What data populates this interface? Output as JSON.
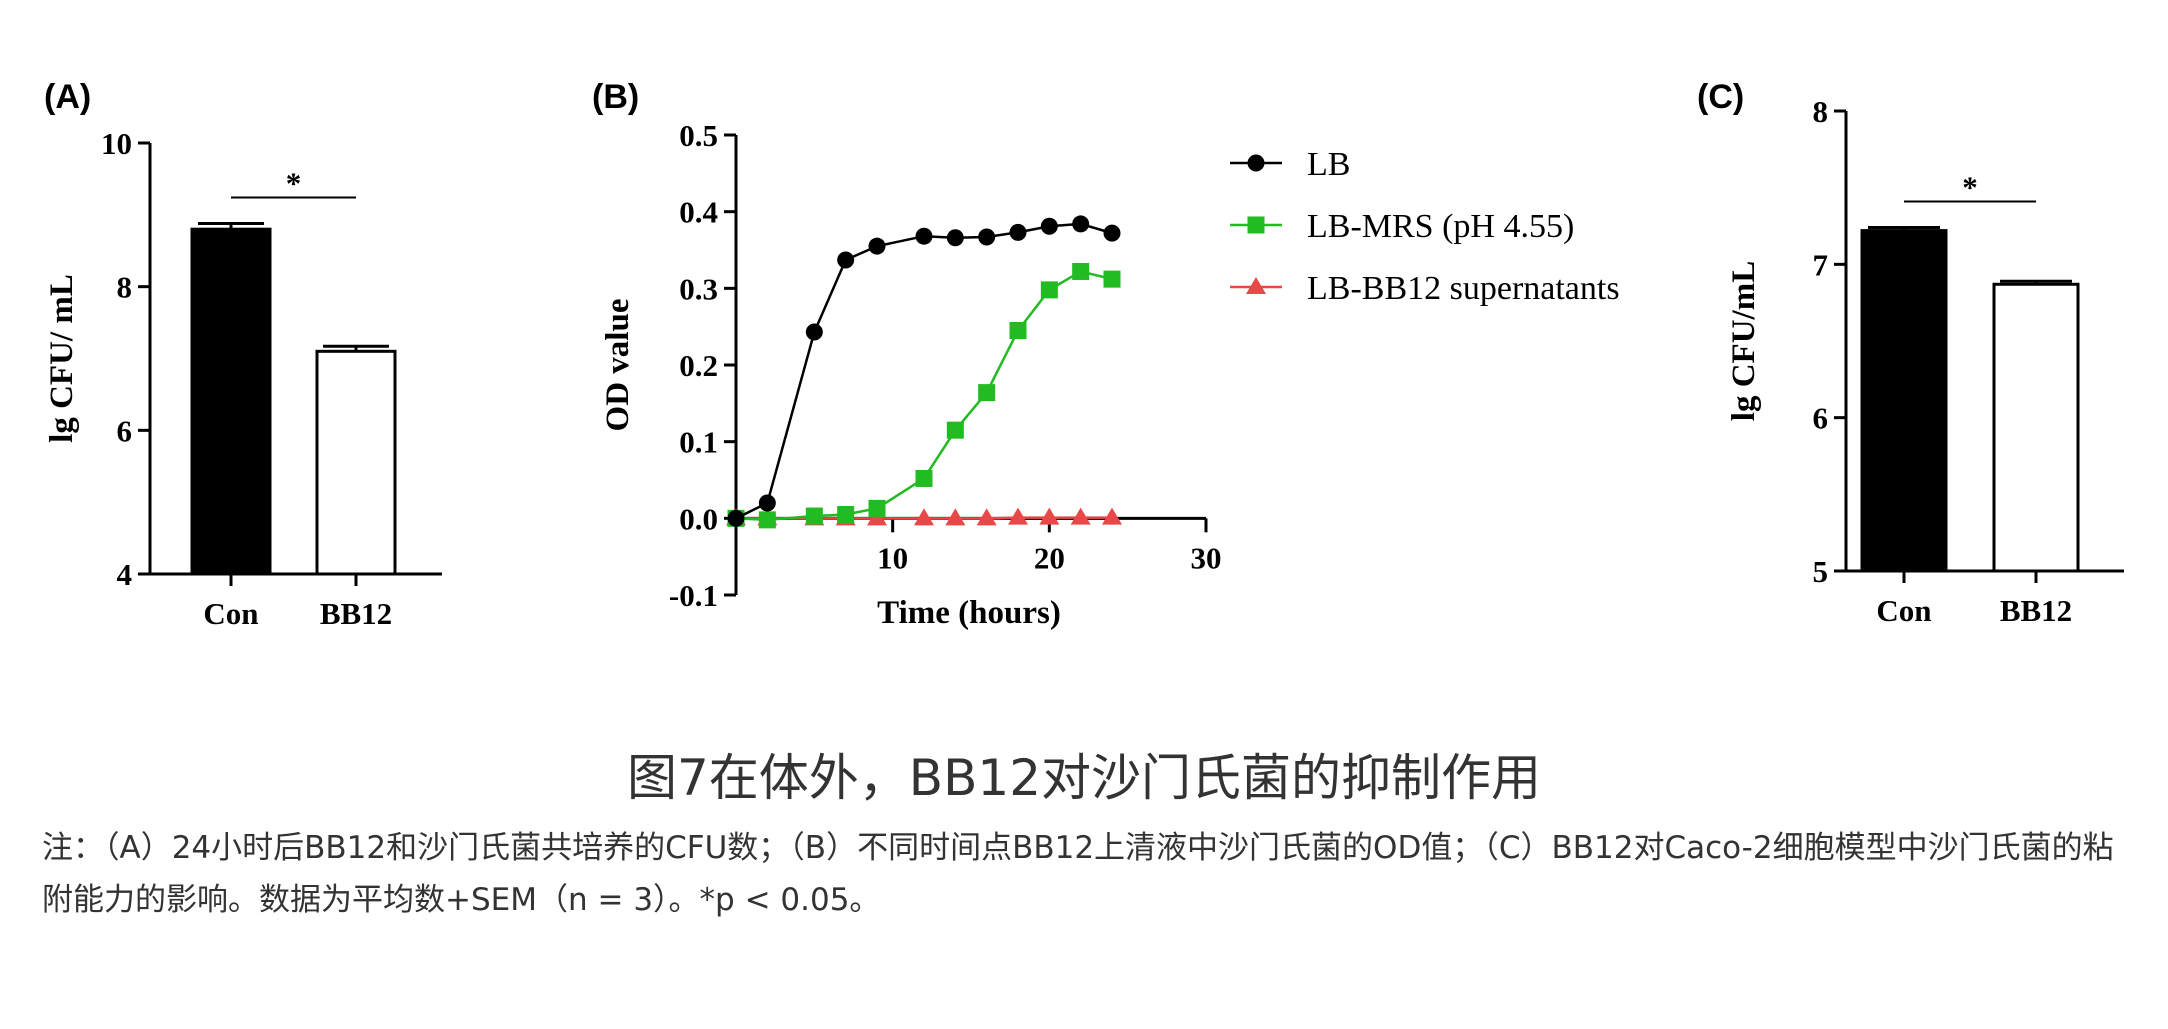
{
  "caption": "图7在体外，BB12对沙门氏菌的抑制作用",
  "note_line1": "注：（A）24小时后BB12和沙门氏菌共培养的CFU数；（B）不同时间点BB12上清液中沙门氏菌的OD值；（C）BB12对Caco-2细胞模型中沙门氏菌的粘",
  "note_line2": "附能力的影响。数据为平均数+SEM（n = 3）。*p < 0.05。",
  "chart_data": [
    {
      "panel": "(A)",
      "type": "bar",
      "categories": [
        "Con",
        "BB12"
      ],
      "values": [
        8.8,
        7.1
      ],
      "errors": [
        0.08,
        0.07
      ],
      "bar_colors": [
        "#000000",
        "#ffffff"
      ],
      "ylabel": "lg CFU/ mL",
      "ylim": [
        4,
        10
      ],
      "yticks": [
        4,
        6,
        8,
        10
      ],
      "significance": "*"
    },
    {
      "panel": "(B)",
      "type": "line",
      "xlabel": "Time (hours)",
      "ylabel": "OD value",
      "xlim": [
        0,
        30
      ],
      "ylim": [
        -0.1,
        0.5
      ],
      "xticks": [
        10,
        20,
        30
      ],
      "yticks": [
        -0.1,
        0.0,
        0.1,
        0.2,
        0.3,
        0.4,
        0.5
      ],
      "legend_position": "right",
      "series": [
        {
          "name": "LB",
          "color": "#000000",
          "marker": "circle",
          "x": [
            0,
            2,
            5,
            7,
            9,
            12,
            14,
            16,
            18,
            20,
            22,
            24
          ],
          "y": [
            0.0,
            0.02,
            0.243,
            0.337,
            0.355,
            0.368,
            0.366,
            0.367,
            0.373,
            0.381,
            0.384,
            0.372
          ]
        },
        {
          "name": "LB-MRS (pH 4.55)",
          "color": "#22bb22",
          "marker": "square",
          "x": [
            0,
            2,
            5,
            7,
            9,
            12,
            14,
            16,
            18,
            20,
            22,
            24
          ],
          "y": [
            0.0,
            -0.002,
            0.003,
            0.005,
            0.013,
            0.052,
            0.115,
            0.164,
            0.245,
            0.298,
            0.322,
            0.312
          ]
        },
        {
          "name": "LB-BB12 supernatants",
          "color": "#e84848",
          "marker": "triangle",
          "x": [
            0,
            2,
            5,
            7,
            9,
            12,
            14,
            16,
            18,
            20,
            22,
            24
          ],
          "y": [
            0.0,
            0.0,
            0.0,
            0.0,
            0.0,
            0.0,
            0.0,
            0.0,
            0.001,
            0.001,
            0.001,
            0.001
          ]
        }
      ]
    },
    {
      "panel": "(C)",
      "type": "bar",
      "categories": [
        "Con",
        "BB12"
      ],
      "values": [
        7.22,
        6.87
      ],
      "errors": [
        0.02,
        0.02
      ],
      "bar_colors": [
        "#000000",
        "#ffffff"
      ],
      "ylabel": "lg CFU/mL",
      "ylim": [
        5,
        8
      ],
      "yticks": [
        5,
        6,
        7,
        8
      ],
      "significance": "*"
    }
  ]
}
